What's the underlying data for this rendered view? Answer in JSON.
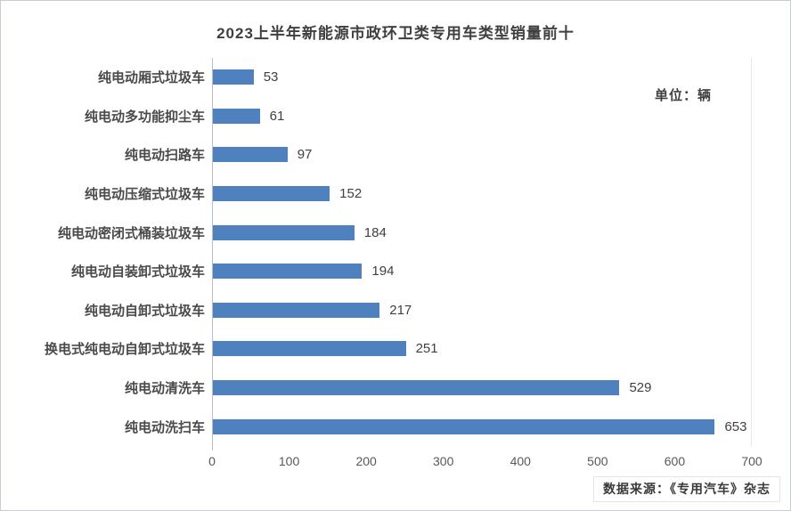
{
  "page": {
    "title": "2023上半年新能源市政环卫类专用车类型销量前十",
    "unit_label": "单位：辆",
    "source_label": "数据来源：《专用汽车》杂志"
  },
  "chart_data": {
    "type": "bar",
    "orientation": "horizontal",
    "title": "2023上半年新能源市政环卫类专用车类型销量前十",
    "categories": [
      "纯电动厢式垃圾车",
      "纯电动多功能抑尘车",
      "纯电动扫路车",
      "纯电动压缩式垃圾车",
      "纯电动密闭式桶装垃圾车",
      "纯电动自装卸式垃圾车",
      "纯电动自卸式垃圾车",
      "换电式纯电动自卸式垃圾车",
      "纯电动清洗车",
      "纯电动洗扫车"
    ],
    "values": [
      53,
      61,
      97,
      152,
      184,
      194,
      217,
      251,
      529,
      653
    ],
    "unit": "辆",
    "xlabel": "",
    "ylabel": "",
    "xlim": [
      0,
      700
    ],
    "x_ticks": [
      0,
      100,
      200,
      300,
      400,
      500,
      600,
      700
    ],
    "bar_color": "#4E81BD",
    "value_labels": true,
    "grid": false,
    "legend": "none"
  }
}
